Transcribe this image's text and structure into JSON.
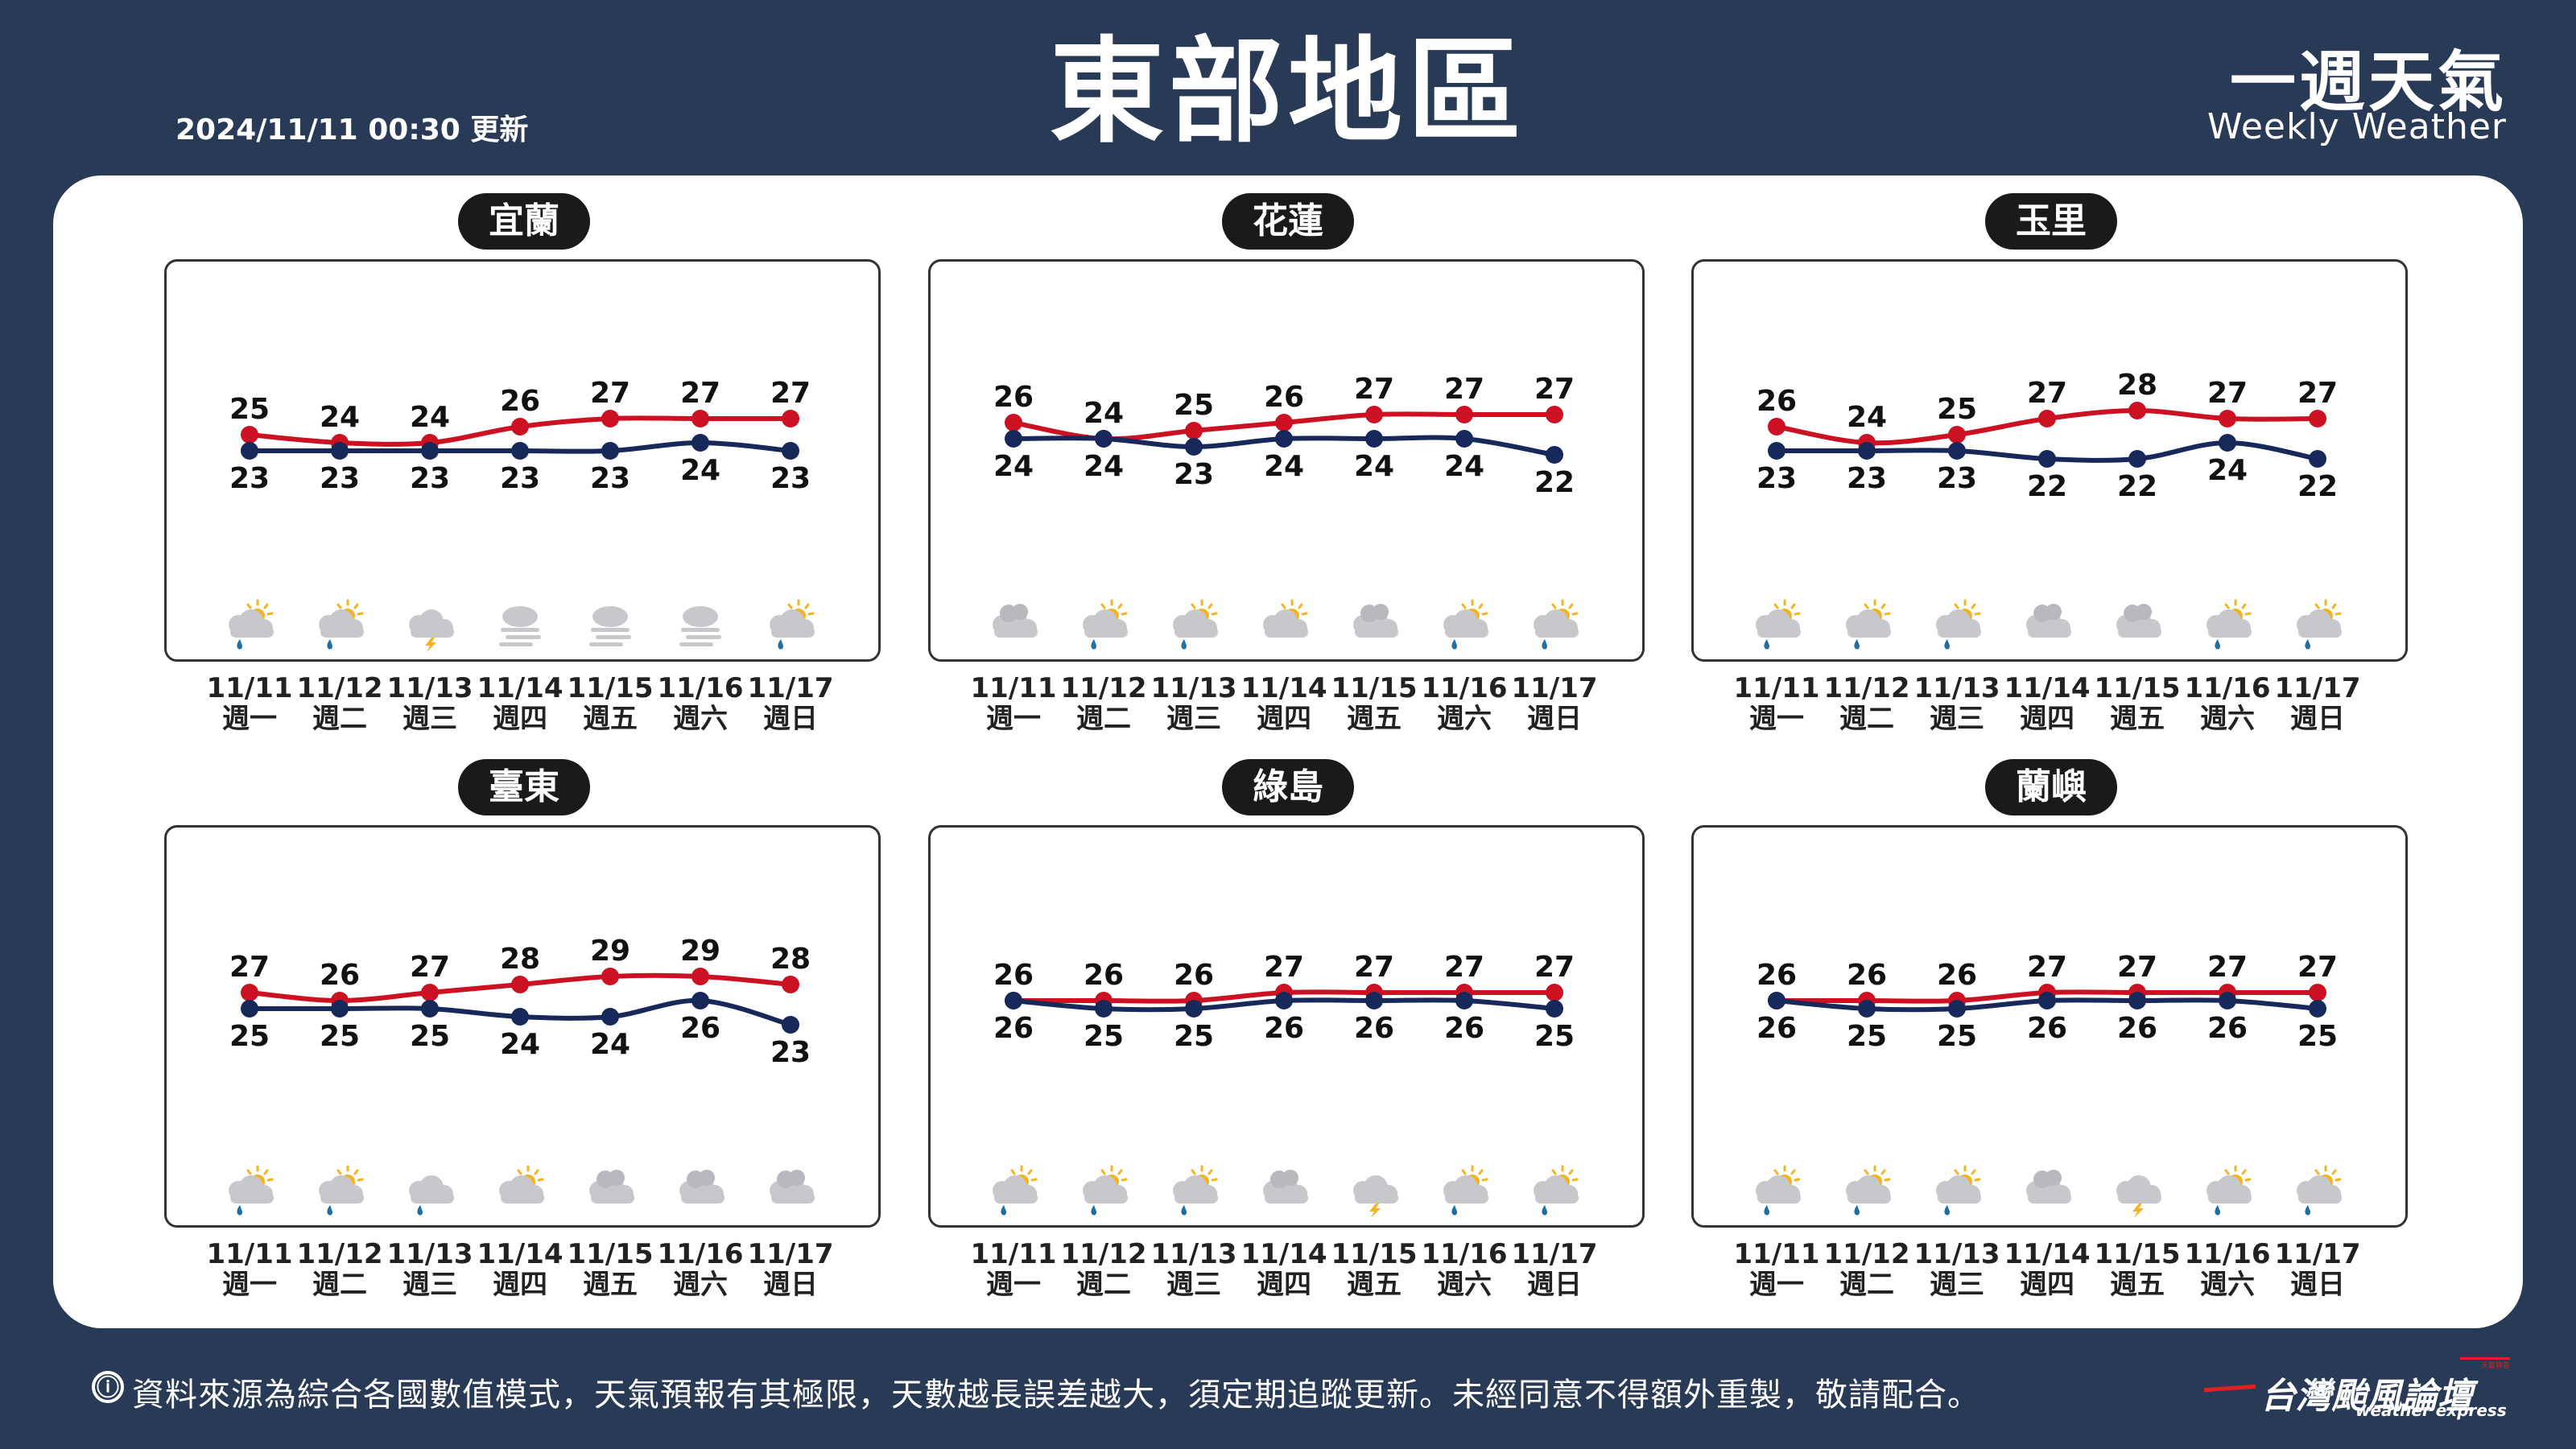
{
  "header": {
    "update_time": "2024/11/11 00:30 更新",
    "title": "東部地區",
    "brand_zh": "一週天氣",
    "brand_en": "Weekly Weather"
  },
  "days": [
    {
      "date": "11/11",
      "weekday": "週一"
    },
    {
      "date": "11/12",
      "weekday": "週二"
    },
    {
      "date": "11/13",
      "weekday": "週三"
    },
    {
      "date": "11/14",
      "weekday": "週四"
    },
    {
      "date": "11/15",
      "weekday": "週五"
    },
    {
      "date": "11/16",
      "weekday": "週六"
    },
    {
      "date": "11/17",
      "weekday": "週日"
    }
  ],
  "colors": {
    "high": "#cc1122",
    "low": "#17285a",
    "cloud": "#c6c8cc",
    "sun": "#f5b324",
    "rain": "#1f6fa6",
    "bolt": "#f5b324"
  },
  "chart_data": [
    {
      "type": "line",
      "station": "宜蘭",
      "x": [
        "11/11",
        "11/12",
        "11/13",
        "11/14",
        "11/15",
        "11/16",
        "11/17"
      ],
      "series": [
        {
          "values": [
            25,
            24,
            24,
            26,
            27,
            27,
            27
          ]
        },
        {
          "values": [
            23,
            23,
            23,
            23,
            23,
            24,
            23
          ]
        }
      ],
      "weather": [
        "partly-cloudy-rain-icon",
        "partly-cloudy-rain-icon",
        "thunderstorm-icon",
        "fog-icon",
        "fog-icon",
        "fog-icon",
        "partly-cloudy-rain-icon"
      ]
    },
    {
      "type": "line",
      "station": "花蓮",
      "x": [
        "11/11",
        "11/12",
        "11/13",
        "11/14",
        "11/15",
        "11/16",
        "11/17"
      ],
      "series": [
        {
          "values": [
            26,
            24,
            25,
            26,
            27,
            27,
            27
          ]
        },
        {
          "values": [
            24,
            24,
            23,
            24,
            24,
            24,
            22
          ]
        }
      ],
      "weather": [
        "cloudy-icon",
        "partly-cloudy-rain-icon",
        "partly-cloudy-rain-icon",
        "partly-cloudy-icon",
        "cloudy-icon",
        "partly-cloudy-rain-icon",
        "partly-cloudy-rain-icon"
      ]
    },
    {
      "type": "line",
      "station": "玉里",
      "x": [
        "11/11",
        "11/12",
        "11/13",
        "11/14",
        "11/15",
        "11/16",
        "11/17"
      ],
      "series": [
        {
          "values": [
            26,
            24,
            25,
            27,
            28,
            27,
            27
          ]
        },
        {
          "values": [
            23,
            23,
            23,
            22,
            22,
            24,
            22
          ]
        }
      ],
      "weather": [
        "partly-cloudy-rain-icon",
        "partly-cloudy-rain-icon",
        "partly-cloudy-rain-icon",
        "cloudy-icon",
        "cloudy-icon",
        "partly-cloudy-rain-icon",
        "partly-cloudy-rain-icon"
      ]
    },
    {
      "type": "line",
      "station": "臺東",
      "x": [
        "11/11",
        "11/12",
        "11/13",
        "11/14",
        "11/15",
        "11/16",
        "11/17"
      ],
      "series": [
        {
          "values": [
            27,
            26,
            27,
            28,
            29,
            29,
            28
          ]
        },
        {
          "values": [
            25,
            25,
            25,
            24,
            24,
            26,
            23
          ]
        }
      ],
      "weather": [
        "partly-cloudy-rain-icon",
        "partly-cloudy-rain-icon",
        "cloudy-rain-icon",
        "partly-cloudy-icon",
        "cloudy-icon",
        "cloudy-icon",
        "cloudy-icon"
      ]
    },
    {
      "type": "line",
      "station": "綠島",
      "x": [
        "11/11",
        "11/12",
        "11/13",
        "11/14",
        "11/15",
        "11/16",
        "11/17"
      ],
      "series": [
        {
          "values": [
            26,
            26,
            26,
            27,
            27,
            27,
            27
          ]
        },
        {
          "values": [
            26,
            25,
            25,
            26,
            26,
            26,
            25
          ]
        }
      ],
      "weather": [
        "partly-cloudy-rain-icon",
        "partly-cloudy-rain-icon",
        "partly-cloudy-rain-icon",
        "cloudy-icon",
        "thunderstorm-icon",
        "partly-cloudy-rain-icon",
        "partly-cloudy-rain-icon"
      ]
    },
    {
      "type": "line",
      "station": "蘭嶼",
      "x": [
        "11/11",
        "11/12",
        "11/13",
        "11/14",
        "11/15",
        "11/16",
        "11/17"
      ],
      "series": [
        {
          "values": [
            26,
            26,
            26,
            27,
            27,
            27,
            27
          ]
        },
        {
          "values": [
            26,
            25,
            25,
            26,
            26,
            26,
            25
          ]
        }
      ],
      "weather": [
        "partly-cloudy-rain-icon",
        "partly-cloudy-rain-icon",
        "partly-cloudy-rain-icon",
        "cloudy-icon",
        "thunderstorm-icon",
        "partly-cloudy-rain-icon",
        "partly-cloudy-rain-icon"
      ]
    }
  ],
  "footer": {
    "info_icon": "ⓘ",
    "note": "資料來源為綜合各國數值模式，天氣預報有其極限，天數越長誤差越大，須定期追蹤更新。未經同意不得額外重製，敬請配合。",
    "logo_zh": "台灣颱風論壇",
    "logo_en": "weather express",
    "logo_tag": "天氣特急"
  }
}
